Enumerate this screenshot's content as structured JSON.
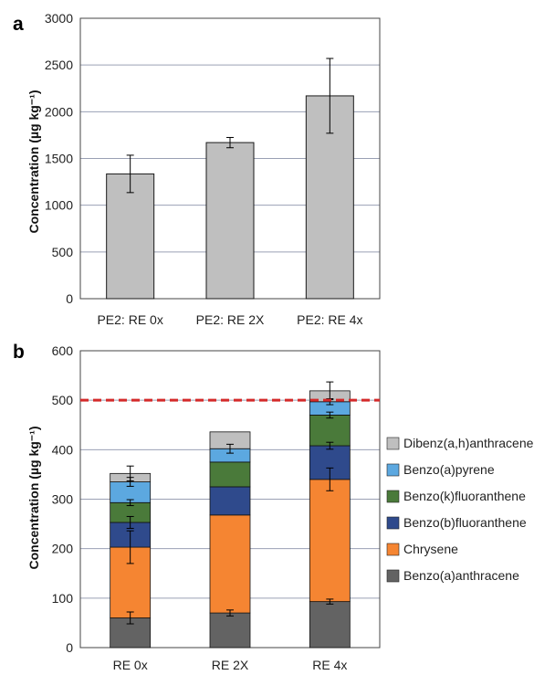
{
  "chart_data": [
    {
      "panel": "a",
      "type": "bar",
      "categories": [
        "PE2: RE 0x",
        "PE2: RE 2X",
        "PE2: RE 4x"
      ],
      "values": [
        1335,
        1670,
        2170
      ],
      "errors": [
        200,
        55,
        400
      ],
      "ylabel": "Concentration (µg kg⁻¹)",
      "ylim": [
        0,
        3000
      ],
      "yticks": [
        0,
        500,
        1000,
        1500,
        2000,
        2500,
        3000
      ],
      "grid": true,
      "colors": {
        "bar": "#bfbfbf",
        "edge": "#1a1a1a",
        "grid": "#9aa0b4"
      }
    },
    {
      "panel": "b",
      "type": "bar",
      "stacked": true,
      "categories": [
        "RE 0x",
        "RE 2X",
        "RE 4x"
      ],
      "series": [
        {
          "name": "Benzo(a)anthracene",
          "values": [
            60,
            70,
            93
          ],
          "errors": [
            12,
            6,
            5
          ],
          "color": "#636363"
        },
        {
          "name": "Chrysene",
          "values": [
            143,
            198,
            247
          ],
          "errors": [
            33,
            0,
            23
          ],
          "color": "#f58532"
        },
        {
          "name": "Benzo(b)fluoranthene",
          "values": [
            50,
            57,
            68
          ],
          "errors": [
            12,
            0,
            7
          ],
          "color": "#2f4a8c"
        },
        {
          "name": "Benzo(k)fluoranthene",
          "values": [
            40,
            50,
            62
          ],
          "errors": [
            6,
            0,
            6
          ],
          "color": "#4a7a3a"
        },
        {
          "name": "Benzo(a)pyrene",
          "values": [
            42,
            27,
            27
          ],
          "errors": [
            9,
            9,
            6
          ],
          "color": "#5ca8e0"
        },
        {
          "name": "Dibenz(a,h)anthracene",
          "values": [
            17,
            34,
            22
          ],
          "errors": [
            15,
            0,
            18
          ],
          "color": "#bfbfbf"
        }
      ],
      "ylabel": "Concentration (µg kg⁻¹)",
      "ylim": [
        0,
        600
      ],
      "yticks": [
        0,
        100,
        200,
        300,
        400,
        500,
        600
      ],
      "grid": true,
      "threshold": {
        "value": 500,
        "color": "#d42a2a"
      },
      "legend": "right"
    }
  ]
}
